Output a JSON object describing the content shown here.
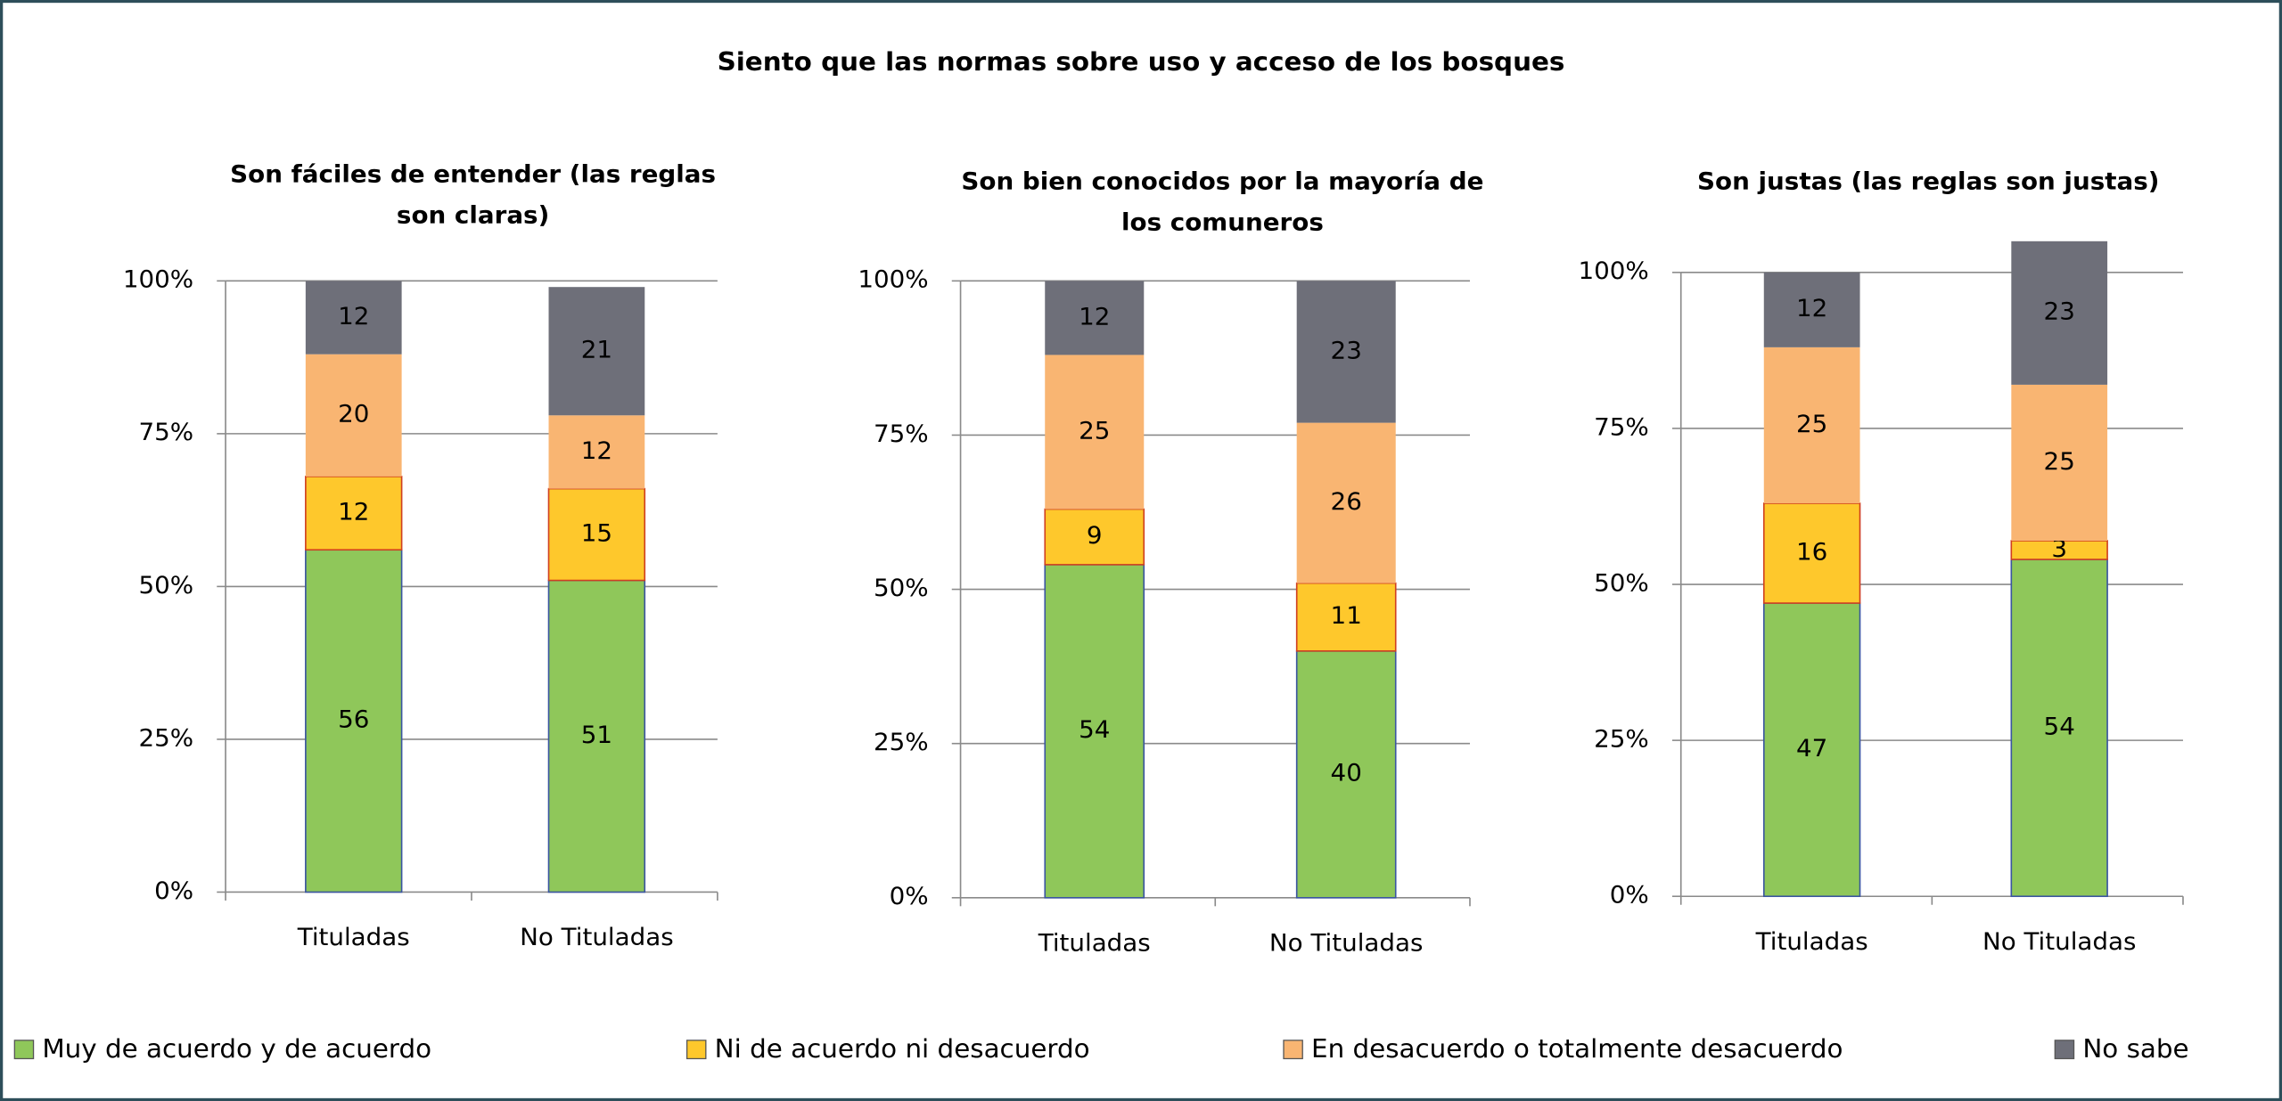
{
  "title": "Siento que las normas sobre uso y acceso de los bosques",
  "chart_data": [
    {
      "type": "bar",
      "stacked": true,
      "title": "Son fáciles de entender (las reglas son claras)",
      "categories": [
        "Tituladas",
        "No Tituladas"
      ],
      "series": [
        {
          "name": "Muy de acuerdo y de acuerdo",
          "color": "#8fc75a",
          "values": [
            56,
            51
          ]
        },
        {
          "name": "Ni de acuerdo ni desacuerdo",
          "color": "#fec82c",
          "values": [
            12,
            15
          ]
        },
        {
          "name": "En desacuerdo o totalmente desacuerdo",
          "color": "#f9b572",
          "values": [
            20,
            12
          ]
        },
        {
          "name": "No sabe",
          "color": "#6e6f79",
          "values": [
            12,
            21
          ]
        }
      ],
      "ylim": [
        0,
        100
      ],
      "yticks": [
        {
          "value": 0,
          "label": "0%"
        },
        {
          "value": 25,
          "label": "25%"
        },
        {
          "value": 50,
          "label": "50%"
        },
        {
          "value": 75,
          "label": "75%"
        },
        {
          "value": 100,
          "label": "100%"
        }
      ],
      "grid": true
    },
    {
      "type": "bar",
      "stacked": true,
      "title": "Son bien conocidos por la mayoría de los comuneros",
      "categories": [
        "Tituladas",
        "No Tituladas"
      ],
      "series": [
        {
          "name": "Muy de acuerdo y de acuerdo",
          "color": "#8fc75a",
          "values": [
            54,
            40
          ]
        },
        {
          "name": "Ni de acuerdo ni desacuerdo",
          "color": "#fec82c",
          "values": [
            9,
            11
          ]
        },
        {
          "name": "En desacuerdo o totalmente desacuerdo",
          "color": "#f9b572",
          "values": [
            25,
            26
          ]
        },
        {
          "name": "No sabe",
          "color": "#6e6f79",
          "values": [
            12,
            23
          ]
        }
      ],
      "ylim": [
        0,
        100
      ],
      "yticks": [
        {
          "value": 0,
          "label": "0%"
        },
        {
          "value": 25,
          "label": "25%"
        },
        {
          "value": 50,
          "label": "50%"
        },
        {
          "value": 75,
          "label": "75%"
        },
        {
          "value": 100,
          "label": "100%"
        }
      ],
      "grid": true
    },
    {
      "type": "bar",
      "stacked": true,
      "title": "Son justas (las reglas son justas)",
      "categories": [
        "Tituladas",
        "No Tituladas"
      ],
      "series": [
        {
          "name": "Muy de acuerdo y de acuerdo",
          "color": "#8fc75a",
          "values": [
            47,
            54
          ]
        },
        {
          "name": "Ni de acuerdo ni desacuerdo",
          "color": "#fec82c",
          "values": [
            16,
            3
          ]
        },
        {
          "name": "En desacuerdo o totalmente desacuerdo",
          "color": "#f9b572",
          "values": [
            25,
            25
          ]
        },
        {
          "name": "No sabe",
          "color": "#6e6f79",
          "values": [
            12,
            23
          ]
        }
      ],
      "ylim": [
        0,
        100
      ],
      "yticks": [
        {
          "value": 0,
          "label": "0%"
        },
        {
          "value": 25,
          "label": "25%"
        },
        {
          "value": 50,
          "label": "50%"
        },
        {
          "value": 75,
          "label": "75%"
        },
        {
          "value": 100,
          "label": "100%"
        }
      ],
      "grid": true
    }
  ]
}
